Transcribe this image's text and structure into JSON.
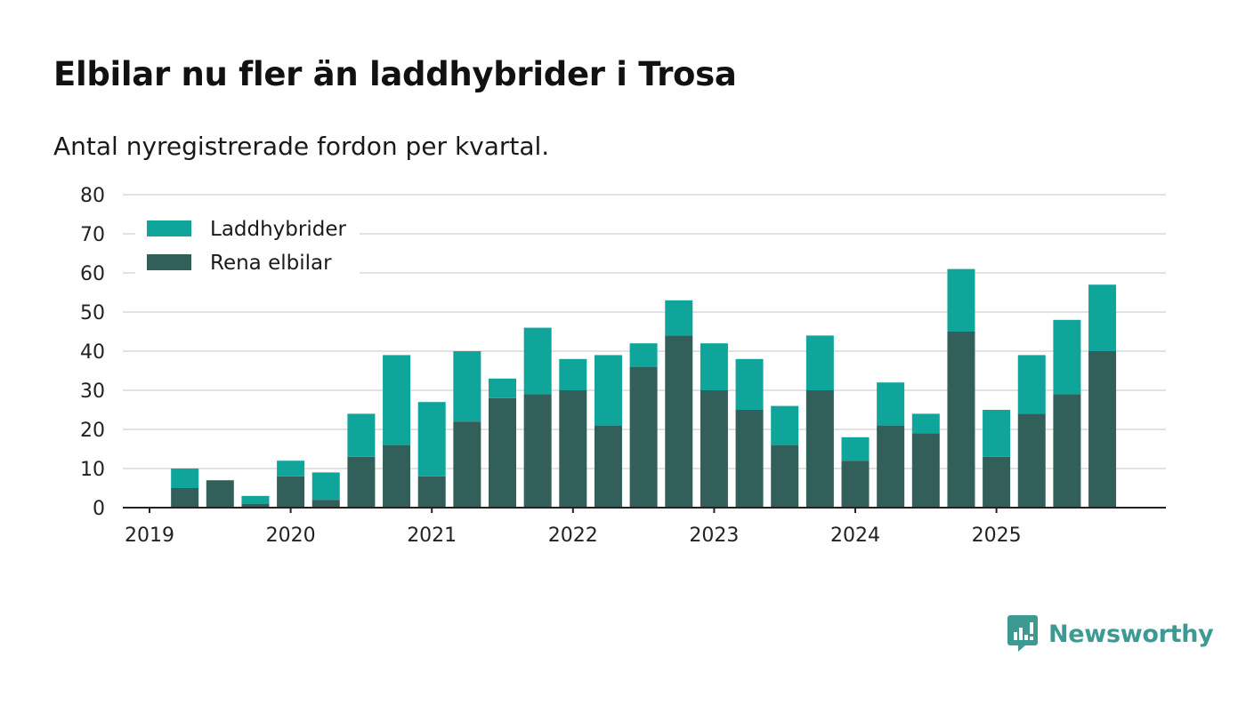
{
  "title": "Elbilar nu fler än laddhybrider i Trosa",
  "subtitle": "Antal nyregistrerade fordon per kvartal.",
  "brand": {
    "name": "Newsworthy",
    "icon": "newsworthy-logo-icon",
    "color": "#3d9a93"
  },
  "chart_data": {
    "type": "bar",
    "stacked": true,
    "title": "Elbilar nu fler än laddhybrider i Trosa",
    "subtitle": "Antal nyregistrerade fordon per kvartal.",
    "xlabel": "",
    "ylabel": "",
    "ylim": [
      0,
      80
    ],
    "yticks": [
      0,
      10,
      20,
      30,
      40,
      50,
      60,
      70,
      80
    ],
    "x_tick_labels": [
      "2019",
      "2020",
      "2021",
      "2022",
      "2023",
      "2024",
      "2025"
    ],
    "legend_position": "top-left",
    "grid": true,
    "categories": [
      "2019 Q1",
      "2019 Q2",
      "2019 Q3",
      "2019 Q4",
      "2020 Q1",
      "2020 Q2",
      "2020 Q3",
      "2020 Q4",
      "2021 Q1",
      "2021 Q2",
      "2021 Q3",
      "2021 Q4",
      "2022 Q1",
      "2022 Q2",
      "2022 Q3",
      "2022 Q4",
      "2023 Q1",
      "2023 Q2",
      "2023 Q3",
      "2023 Q4",
      "2024 Q1",
      "2024 Q2",
      "2024 Q3",
      "2024 Q4",
      "2025 Q1",
      "2025 Q2",
      "2025 Q3",
      "2025 Q4"
    ],
    "series": [
      {
        "name": "Rena elbilar",
        "color": "#335f5a",
        "values": [
          0,
          5,
          7,
          1,
          8,
          2,
          13,
          16,
          8,
          22,
          28,
          29,
          30,
          21,
          36,
          44,
          30,
          25,
          16,
          30,
          12,
          21,
          19,
          45,
          13,
          24,
          29,
          40
        ]
      },
      {
        "name": "Laddhybrider",
        "color": "#10a59a",
        "values": [
          0,
          5,
          0,
          2,
          4,
          7,
          11,
          23,
          19,
          18,
          5,
          17,
          8,
          18,
          6,
          9,
          12,
          13,
          10,
          14,
          6,
          11,
          5,
          16,
          12,
          15,
          19,
          17
        ]
      }
    ]
  }
}
